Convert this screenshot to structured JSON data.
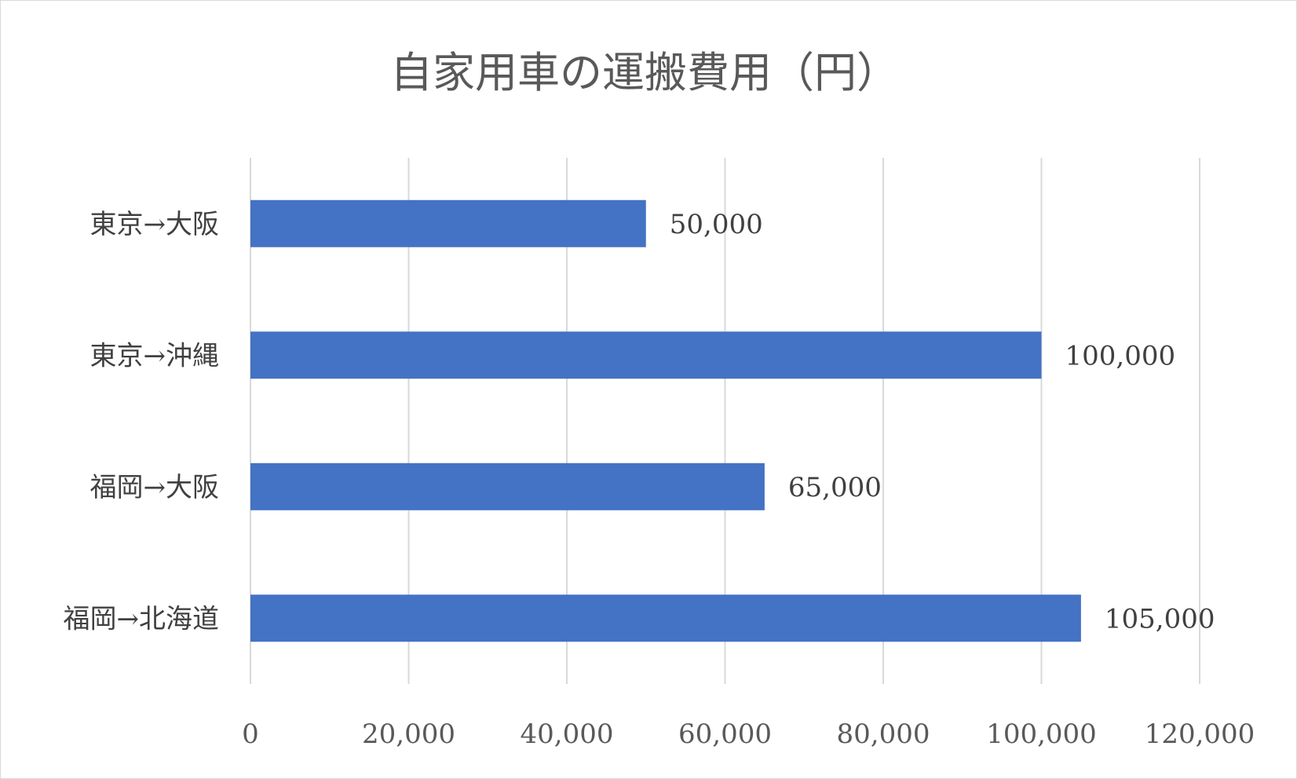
{
  "chart_data": {
    "type": "bar",
    "orientation": "horizontal",
    "title": "自家用車の運搬費用（円）",
    "categories": [
      "東京→大阪",
      "東京→沖縄",
      "福岡→大阪",
      "福岡→北海道"
    ],
    "values": [
      50000,
      100000,
      65000,
      105000
    ],
    "data_labels": [
      "50,000",
      "100,000",
      "65,000",
      "105,000"
    ],
    "x_ticks": [
      "0",
      "20,000",
      "40,000",
      "60,000",
      "80,000",
      "100,000",
      "120,000"
    ],
    "tick_values": [
      0,
      20000,
      40000,
      60000,
      80000,
      100000,
      120000
    ],
    "xlim": [
      0,
      120000
    ],
    "xlabel": "",
    "ylabel": "",
    "grid": true,
    "legend": "none",
    "bar_color": "#4472C4",
    "text_color": "#595959",
    "grid_color": "#D9D9D9"
  }
}
